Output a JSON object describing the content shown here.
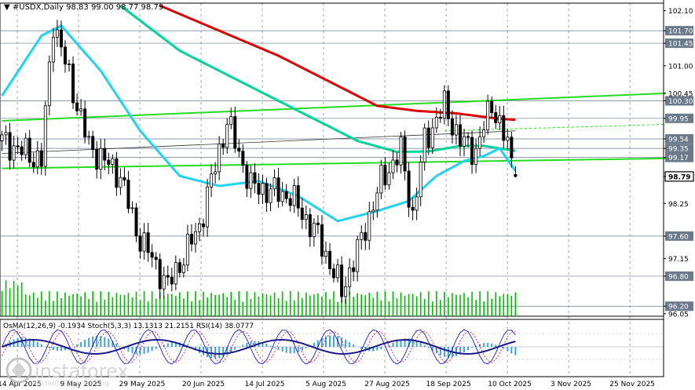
{
  "header": {
    "symbol": "#USDX,Daily",
    "ohlc": "98.83 99.00 98.77 98.79"
  },
  "watermark": {
    "brand": "instaforex",
    "tagline": "Instant Forex Trading"
  },
  "indicator_label": "OsMA(12,26,9) -0.1934  Stoch(5,3,3) 13.1313 21.2151  RSI(14) 38.0777",
  "colors": {
    "candle": "#000000",
    "ma_fast": "#22d3ee",
    "ma_mid": "#00d49a",
    "ma_slow": "#dd0000",
    "channel": "#22dd22",
    "volume": "#00bb00",
    "osma": "#3aa3d8",
    "stoch_main": "#0000cc",
    "stoch_signal": "#cc0044",
    "rsi": "#1a1a8a",
    "current_price_bg": "#000000"
  },
  "chart_data": {
    "type": "candlestick",
    "timeframe": "Daily",
    "current_price": 98.79,
    "price_axis_ticks": [
      102.1,
      101.7,
      101.45,
      101.0,
      100.45,
      100.3,
      99.95,
      99.54,
      99.35,
      99.17,
      98.79,
      98.25,
      97.6,
      97.15,
      96.8,
      96.2,
      96.05
    ],
    "x_ticks": [
      "14 Apr 2025",
      "9 May 2025",
      "29 May 2025",
      "20 Jun 2025",
      "14 Jul 2025",
      "5 Aug 2025",
      "27 Aug 2025",
      "18 Sep 2025",
      "10 Oct 2025",
      "3 Nov 2025",
      "25 Nov 2025"
    ],
    "key_levels": [
      101.7,
      101.45,
      100.3,
      99.95,
      99.54,
      99.35,
      99.17,
      97.6,
      96.8,
      96.2
    ],
    "ohlc_last": {
      "open": 98.83,
      "high": 99.0,
      "low": 98.77,
      "close": 98.79
    },
    "ylim": [
      96.0,
      102.25
    ],
    "close_anchors": [
      [
        0,
        99.5
      ],
      [
        10,
        99.1
      ],
      [
        13,
        101.9
      ],
      [
        18,
        100.5
      ],
      [
        22,
        99.4
      ],
      [
        30,
        98.8
      ],
      [
        34,
        97.7
      ],
      [
        42,
        96.6
      ],
      [
        50,
        97.8
      ],
      [
        57,
        99.9
      ],
      [
        63,
        98.6
      ],
      [
        73,
        98.4
      ],
      [
        80,
        97.6
      ],
      [
        86,
        96.5
      ],
      [
        90,
        97.3
      ],
      [
        96,
        98.7
      ],
      [
        101,
        99.3
      ],
      [
        104,
        98.0
      ],
      [
        107,
        99.5
      ],
      [
        112,
        100.2
      ],
      [
        116,
        99.5
      ],
      [
        120,
        99.3
      ],
      [
        124,
        100.25
      ],
      [
        128,
        99.4
      ],
      [
        130,
        98.79
      ]
    ],
    "sma_fast": [
      [
        0,
        100.4
      ],
      [
        10,
        101.6
      ],
      [
        15,
        101.8
      ],
      [
        25,
        100.9
      ],
      [
        35,
        99.7
      ],
      [
        45,
        98.8
      ],
      [
        55,
        98.6
      ],
      [
        65,
        98.7
      ],
      [
        75,
        98.4
      ],
      [
        85,
        97.9
      ],
      [
        95,
        98.1
      ],
      [
        103,
        98.3
      ],
      [
        110,
        98.8
      ],
      [
        117,
        99.1
      ],
      [
        122,
        99.2
      ],
      [
        126,
        99.35
      ],
      [
        130,
        98.9
      ]
    ],
    "sma_mid": [
      [
        30,
        102.2
      ],
      [
        45,
        101.3
      ],
      [
        60,
        100.7
      ],
      [
        75,
        100.1
      ],
      [
        90,
        99.5
      ],
      [
        100,
        99.28
      ],
      [
        108,
        99.29
      ],
      [
        116,
        99.4
      ],
      [
        122,
        99.4
      ],
      [
        130,
        99.3
      ]
    ],
    "sma_slow": [
      [
        40,
        102.2
      ],
      [
        55,
        101.7
      ],
      [
        70,
        101.2
      ],
      [
        85,
        100.6
      ],
      [
        95,
        100.2
      ],
      [
        105,
        100.1
      ],
      [
        115,
        100.05
      ],
      [
        125,
        99.95
      ],
      [
        130,
        99.92
      ]
    ],
    "channel_upper": [
      [
        0,
        99.9
      ],
      [
        168,
        100.45
      ]
    ],
    "channel_lower": [
      [
        0,
        98.95
      ],
      [
        168,
        99.15
      ]
    ],
    "channel_mid_ext": [
      [
        112,
        99.7
      ],
      [
        168,
        99.83
      ]
    ],
    "trend_line": [
      [
        0,
        99.25
      ],
      [
        130,
        99.7
      ]
    ]
  }
}
